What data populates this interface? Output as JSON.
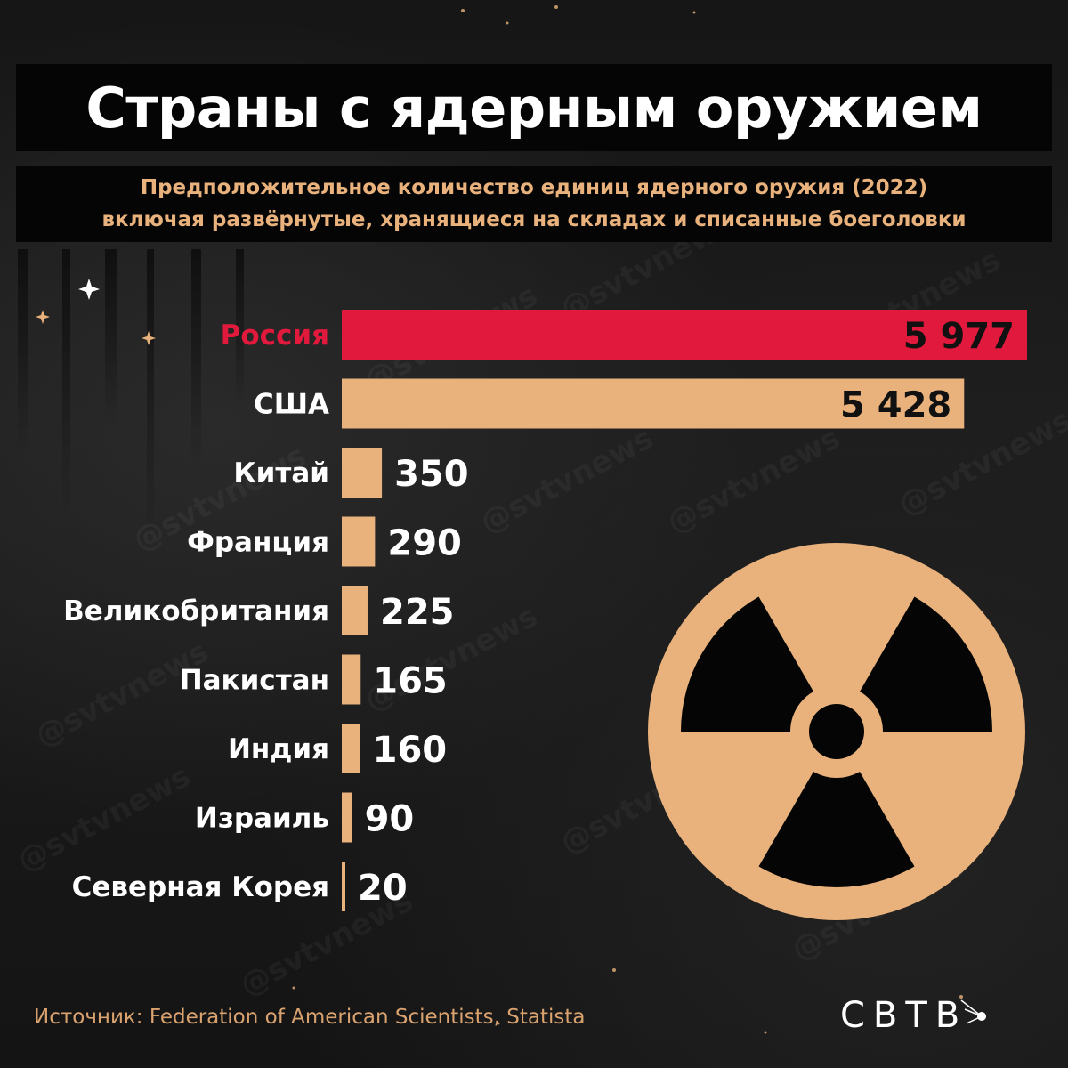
{
  "header": {
    "title": "Страны с ядерным оружием",
    "subtitle_line1": "Предположительное количество единиц ядерного оружия (2022)",
    "subtitle_line2": "включая развёрнутые, хранящиеся на складах и списанные боеголовки"
  },
  "chart_data": {
    "type": "bar",
    "orientation": "horizontal",
    "categories": [
      "Россия",
      "США",
      "Китай",
      "Франция",
      "Великобритания",
      "Пакистан",
      "Индия",
      "Израиль",
      "Северная Корея"
    ],
    "values": [
      5977,
      5428,
      350,
      290,
      225,
      165,
      160,
      90,
      20
    ],
    "value_labels": [
      "5 977",
      "5 428",
      "350",
      "290",
      "225",
      "165",
      "160",
      "90",
      "20"
    ],
    "highlight_index": 0,
    "colors": {
      "highlight": "#e1193c",
      "bar": "#e9b27c",
      "label": "#ffffff",
      "value_inside": "#111111",
      "value_outside": "#ffffff"
    }
  },
  "footer": {
    "source": "Источник: Federation of American Scientists, Statista",
    "logo_text": "СВТВ",
    "watermark_text": "@svtvnews"
  },
  "decor": {
    "radiation_icon_color": "#e9b27c",
    "radiation_icon_fill": "#050505"
  }
}
